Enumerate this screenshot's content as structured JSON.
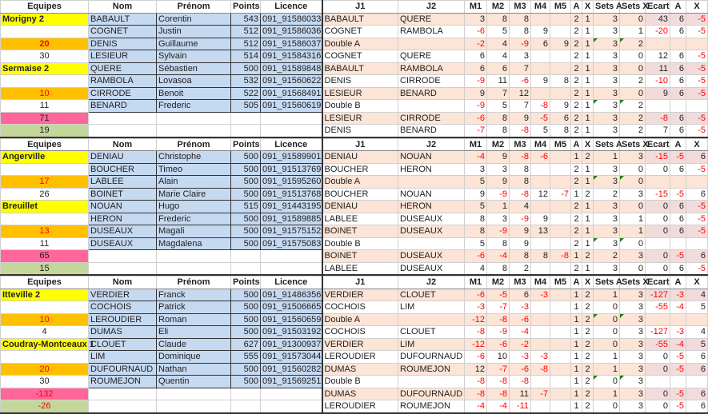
{
  "headers": [
    "Equipes",
    "Nom",
    "Prénom",
    "Points",
    "Licence",
    "J1",
    "J2",
    "M1",
    "M2",
    "M3",
    "M4",
    "M5",
    "A",
    "X",
    "Sets A",
    "Sets X",
    "Ecart",
    "A",
    "X"
  ],
  "colors": {
    "team": "#ffff00",
    "score": "#ffc000",
    "total_a": "#ff6699",
    "total_b": "#c4d79b",
    "player": "#c5d9f1",
    "match_alt": "#fce4d6",
    "negative": "#ff0000"
  },
  "blocks": [
    {
      "team1": {
        "name": "Morigny 2",
        "score": "20",
        "extra": "30"
      },
      "team2": {
        "name": "Sermaise 2",
        "score": "10",
        "extra": "11"
      },
      "total_a": "71",
      "total_b": "19",
      "players": [
        {
          "nom": "BABAULT",
          "prenom": "Corentin",
          "points": "543",
          "licence": "091_91586033"
        },
        {
          "nom": "COGNET",
          "prenom": "Justin",
          "points": "512",
          "licence": "091_91586036"
        },
        {
          "nom": "DENIS",
          "prenom": "Guillaume",
          "points": "512",
          "licence": "091_91586037"
        },
        {
          "nom": "LESIEUR",
          "prenom": "Sylvain",
          "points": "514",
          "licence": "091_91584316"
        },
        {
          "nom": "QUERE",
          "prenom": "Sébastien",
          "points": "500",
          "licence": "091_91589848"
        },
        {
          "nom": "RAMBOLA",
          "prenom": "Lovasoa",
          "points": "532",
          "licence": "091_91560622"
        },
        {
          "nom": "CIRRODE",
          "prenom": "Benoit",
          "points": "522",
          "licence": "091_91568491"
        },
        {
          "nom": "BENARD",
          "prenom": "Frederic",
          "points": "505",
          "licence": "091_91560619"
        }
      ],
      "matches": [
        {
          "j1": "BABAULT",
          "j2": "QUERE",
          "m": [
            "3",
            "8",
            "8",
            "",
            ""
          ],
          "a": "2",
          "x": "1",
          "sets_a": "3",
          "sets_x": "0",
          "ecart": "43",
          "ra": "6",
          "rx": "-5"
        },
        {
          "j1": "COGNET",
          "j2": "RAMBOLA",
          "m": [
            "-6",
            "5",
            "8",
            "9",
            ""
          ],
          "a": "2",
          "x": "1",
          "sets_a": "3",
          "sets_x": "1",
          "ecart": "-20",
          "ra": "6",
          "rx": "-5"
        },
        {
          "j1": "Double A",
          "j2": "",
          "m": [
            "-2",
            "4",
            "-9",
            "6",
            "9"
          ],
          "a": "2",
          "x": "1",
          "sets_a": "3",
          "sets_x": "2",
          "ecart": "",
          "ra": "",
          "rx": ""
        },
        {
          "j1": "COGNET",
          "j2": "QUERE",
          "m": [
            "6",
            "4",
            "3",
            "",
            ""
          ],
          "a": "2",
          "x": "1",
          "sets_a": "3",
          "sets_x": "0",
          "ecart": "12",
          "ra": "6",
          "rx": "-5"
        },
        {
          "j1": "BABAULT",
          "j2": "RAMBOLA",
          "m": [
            "6",
            "6",
            "7",
            "",
            ""
          ],
          "a": "2",
          "x": "1",
          "sets_a": "3",
          "sets_x": "0",
          "ecart": "11",
          "ra": "6",
          "rx": "-5"
        },
        {
          "j1": "DENIS",
          "j2": "CIRRODE",
          "m": [
            "-9",
            "11",
            "-6",
            "9",
            "8"
          ],
          "a": "2",
          "x": "1",
          "sets_a": "3",
          "sets_x": "2",
          "ecart": "-10",
          "ra": "6",
          "rx": "-5"
        },
        {
          "j1": "LESIEUR",
          "j2": "BENARD",
          "m": [
            "9",
            "7",
            "12",
            "",
            ""
          ],
          "a": "2",
          "x": "1",
          "sets_a": "3",
          "sets_x": "0",
          "ecart": "9",
          "ra": "6",
          "rx": "-5"
        },
        {
          "j1": "Double B",
          "j2": "",
          "m": [
            "-9",
            "5",
            "7",
            "-8",
            "9"
          ],
          "a": "2",
          "x": "1",
          "sets_a": "3",
          "sets_x": "2",
          "ecart": "",
          "ra": "",
          "rx": ""
        },
        {
          "j1": "LESIEUR",
          "j2": "CIRRODE",
          "m": [
            "-6",
            "8",
            "9",
            "-5",
            "6"
          ],
          "a": "2",
          "x": "1",
          "sets_a": "3",
          "sets_x": "2",
          "ecart": "-8",
          "ra": "6",
          "rx": "-5"
        },
        {
          "j1": "DENIS",
          "j2": "BENARD",
          "m": [
            "-7",
            "8",
            "-8",
            "5",
            "8"
          ],
          "a": "2",
          "x": "1",
          "sets_a": "3",
          "sets_x": "2",
          "ecart": "7",
          "ra": "6",
          "rx": "-5"
        }
      ]
    },
    {
      "team1": {
        "name": "Angerville",
        "score": "17",
        "extra": "26"
      },
      "team2": {
        "name": "Breuillet",
        "score": "13",
        "extra": "11"
      },
      "total_a": "65",
      "total_b": "15",
      "players": [
        {
          "nom": "DENIAU",
          "prenom": "Christophe",
          "points": "500",
          "licence": "091_91589901"
        },
        {
          "nom": "BOUCHER",
          "prenom": "Timeo",
          "points": "500",
          "licence": "091_91513769"
        },
        {
          "nom": "LABLEE",
          "prenom": "Alain",
          "points": "500",
          "licence": "091_91595260"
        },
        {
          "nom": "BOINET",
          "prenom": "Marie Claire",
          "points": "500",
          "licence": "091_91513768"
        },
        {
          "nom": "NOUAN",
          "prenom": "Hugo",
          "points": "515",
          "licence": "091_91443195"
        },
        {
          "nom": "HERON",
          "prenom": "Frederic",
          "points": "500",
          "licence": "091_91589885"
        },
        {
          "nom": "DUSEAUX",
          "prenom": "Magali",
          "points": "500",
          "licence": "091_91575152"
        },
        {
          "nom": "DUSEAUX",
          "prenom": "Magdalena",
          "points": "500",
          "licence": "091_91575083"
        }
      ],
      "matches": [
        {
          "j1": "DENIAU",
          "j2": "NOUAN",
          "m": [
            "-4",
            "9",
            "-8",
            "-6",
            ""
          ],
          "a": "1",
          "x": "2",
          "sets_a": "1",
          "sets_x": "3",
          "ecart": "-15",
          "ra": "-5",
          "rx": "6"
        },
        {
          "j1": "BOUCHER",
          "j2": "HERON",
          "m": [
            "3",
            "3",
            "8",
            "",
            ""
          ],
          "a": "2",
          "x": "1",
          "sets_a": "3",
          "sets_x": "0",
          "ecart": "0",
          "ra": "6",
          "rx": "-5"
        },
        {
          "j1": "Double A",
          "j2": "",
          "m": [
            "5",
            "9",
            "8",
            "",
            ""
          ],
          "a": "2",
          "x": "1",
          "sets_a": "3",
          "sets_x": "0",
          "ecart": "",
          "ra": "",
          "rx": ""
        },
        {
          "j1": "BOUCHER",
          "j2": "NOUAN",
          "m": [
            "9",
            "-9",
            "-8",
            "12",
            "-7"
          ],
          "a": "1",
          "x": "2",
          "sets_a": "2",
          "sets_x": "3",
          "ecart": "-15",
          "ra": "-5",
          "rx": "6"
        },
        {
          "j1": "DENIAU",
          "j2": "HERON",
          "m": [
            "5",
            "1",
            "4",
            "",
            ""
          ],
          "a": "2",
          "x": "1",
          "sets_a": "3",
          "sets_x": "0",
          "ecart": "0",
          "ra": "6",
          "rx": "-5"
        },
        {
          "j1": "LABLEE",
          "j2": "DUSEAUX",
          "m": [
            "8",
            "3",
            "-9",
            "9",
            ""
          ],
          "a": "2",
          "x": "1",
          "sets_a": "3",
          "sets_x": "1",
          "ecart": "0",
          "ra": "6",
          "rx": "-5"
        },
        {
          "j1": "BOINET",
          "j2": "DUSEAUX",
          "m": [
            "8",
            "-9",
            "9",
            "13",
            ""
          ],
          "a": "2",
          "x": "1",
          "sets_a": "3",
          "sets_x": "1",
          "ecart": "0",
          "ra": "6",
          "rx": "-5"
        },
        {
          "j1": "Double B",
          "j2": "",
          "m": [
            "5",
            "8",
            "9",
            "",
            ""
          ],
          "a": "2",
          "x": "1",
          "sets_a": "3",
          "sets_x": "0",
          "ecart": "",
          "ra": "",
          "rx": ""
        },
        {
          "j1": "BOINET",
          "j2": "DUSEAUX",
          "m": [
            "-6",
            "-4",
            "8",
            "8",
            "-8"
          ],
          "a": "1",
          "x": "2",
          "sets_a": "2",
          "sets_x": "3",
          "ecart": "0",
          "ra": "-5",
          "rx": "6"
        },
        {
          "j1": "LABLEE",
          "j2": "DUSEAUX",
          "m": [
            "4",
            "8",
            "2",
            "",
            ""
          ],
          "a": "2",
          "x": "1",
          "sets_a": "3",
          "sets_x": "0",
          "ecart": "0",
          "ra": "6",
          "rx": "-5"
        }
      ]
    },
    {
      "team1": {
        "name": "Itteville 2",
        "score": "10",
        "extra": "4"
      },
      "team2": {
        "name": "Coudray-Montceaux 1",
        "score": "20",
        "extra": "30"
      },
      "total_a": "-132",
      "total_b": "-26",
      "players": [
        {
          "nom": "VERDIER",
          "prenom": "Franck",
          "points": "500",
          "licence": "091_91486356"
        },
        {
          "nom": "COCHOIS",
          "prenom": "Patrick",
          "points": "500",
          "licence": "091_91506665"
        },
        {
          "nom": "LEROUDIER",
          "prenom": "Roman",
          "points": "500",
          "licence": "091_91560659"
        },
        {
          "nom": "DUMAS",
          "prenom": "Eli",
          "points": "500",
          "licence": "091_91503192"
        },
        {
          "nom": "CLOUET",
          "prenom": "Claude",
          "points": "627",
          "licence": "091_91300937"
        },
        {
          "nom": "LIM",
          "prenom": "Dominique",
          "points": "555",
          "licence": "091_91573044"
        },
        {
          "nom": "DUFOURNAUD",
          "prenom": "Nathan",
          "points": "500",
          "licence": "091_91560282"
        },
        {
          "nom": "ROUMEJON",
          "prenom": "Quentin",
          "points": "500",
          "licence": "091_91569251"
        }
      ],
      "matches": [
        {
          "j1": "VERDIER",
          "j2": "CLOUET",
          "m": [
            "-6",
            "-5",
            "6",
            "-3",
            ""
          ],
          "a": "1",
          "x": "2",
          "sets_a": "1",
          "sets_x": "3",
          "ecart": "-127",
          "ra": "-3",
          "rx": "4"
        },
        {
          "j1": "COCHOIS",
          "j2": "LIM",
          "m": [
            "-3",
            "-7",
            "-3",
            "",
            ""
          ],
          "a": "1",
          "x": "2",
          "sets_a": "0",
          "sets_x": "3",
          "ecart": "-55",
          "ra": "-4",
          "rx": "5"
        },
        {
          "j1": "Double A",
          "j2": "",
          "m": [
            "-12",
            "-8",
            "-6",
            "",
            ""
          ],
          "a": "1",
          "x": "2",
          "sets_a": "0",
          "sets_x": "3",
          "ecart": "",
          "ra": "",
          "rx": ""
        },
        {
          "j1": "COCHOIS",
          "j2": "CLOUET",
          "m": [
            "-8",
            "-9",
            "-4",
            "",
            ""
          ],
          "a": "1",
          "x": "2",
          "sets_a": "0",
          "sets_x": "3",
          "ecart": "-127",
          "ra": "-3",
          "rx": "4"
        },
        {
          "j1": "VERDIER",
          "j2": "LIM",
          "m": [
            "-12",
            "-6",
            "-2",
            "",
            ""
          ],
          "a": "1",
          "x": "2",
          "sets_a": "0",
          "sets_x": "3",
          "ecart": "-55",
          "ra": "-4",
          "rx": "5"
        },
        {
          "j1": "LEROUDIER",
          "j2": "DUFOURNAUD",
          "m": [
            "-6",
            "10",
            "-3",
            "-3",
            ""
          ],
          "a": "1",
          "x": "2",
          "sets_a": "1",
          "sets_x": "3",
          "ecart": "0",
          "ra": "-5",
          "rx": "6"
        },
        {
          "j1": "DUMAS",
          "j2": "ROUMEJON",
          "m": [
            "12",
            "-7",
            "-6",
            "-8",
            ""
          ],
          "a": "1",
          "x": "2",
          "sets_a": "1",
          "sets_x": "3",
          "ecart": "0",
          "ra": "-5",
          "rx": "6"
        },
        {
          "j1": "Double B",
          "j2": "",
          "m": [
            "-8",
            "-8",
            "-8",
            "",
            ""
          ],
          "a": "1",
          "x": "2",
          "sets_a": "0",
          "sets_x": "3",
          "ecart": "",
          "ra": "",
          "rx": ""
        },
        {
          "j1": "DUMAS",
          "j2": "DUFOURNAUD",
          "m": [
            "-8",
            "-8",
            "11",
            "-7",
            ""
          ],
          "a": "1",
          "x": "2",
          "sets_a": "1",
          "sets_x": "3",
          "ecart": "0",
          "ra": "-5",
          "rx": "6"
        },
        {
          "j1": "LEROUDIER",
          "j2": "ROUMEJON",
          "m": [
            "-4",
            "-4",
            "-11",
            "",
            ""
          ],
          "a": "1",
          "x": "2",
          "sets_a": "0",
          "sets_x": "3",
          "ecart": "0",
          "ra": "-5",
          "rx": "6"
        }
      ]
    }
  ]
}
